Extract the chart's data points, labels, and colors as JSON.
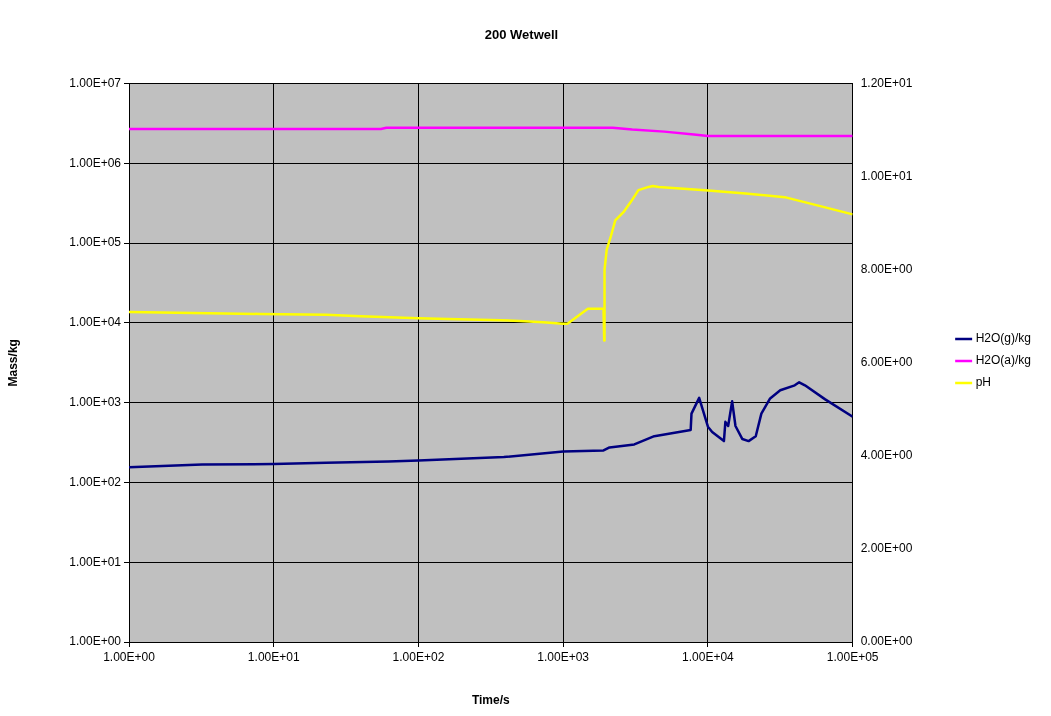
{
  "chart_data": {
    "type": "line",
    "title": "200 Wetwell",
    "xlabel": "Time/s",
    "ylabel": "Mass/kg",
    "log": "xy",
    "grid": true,
    "legend": "right",
    "marker": "none",
    "line_style": "solid",
    "xlim": [
      1,
      100000
    ],
    "xticks": [
      {
        "value": 1,
        "label": "1.00E+00"
      },
      {
        "value": 10,
        "label": "1.00E+01"
      },
      {
        "value": 100,
        "label": "1.00E+02"
      },
      {
        "value": 1000,
        "label": "1.00E+03"
      },
      {
        "value": 10000,
        "label": "1.00E+04"
      },
      {
        "value": 100000,
        "label": "1.00E+05"
      }
    ],
    "ylim": [
      1,
      10000000
    ],
    "yticks": [
      {
        "value": 1,
        "label": "1.00E+00"
      },
      {
        "value": 10,
        "label": "1.00E+01"
      },
      {
        "value": 100,
        "label": "1.00E+02"
      },
      {
        "value": 1000,
        "label": "1.00E+03"
      },
      {
        "value": 10000,
        "label": "1.00E+04"
      },
      {
        "value": 100000,
        "label": "1.00E+05"
      },
      {
        "value": 1000000,
        "label": "1.00E+06"
      },
      {
        "value": 10000000,
        "label": "1.00E+07"
      }
    ],
    "y2lim": [
      0,
      12
    ],
    "y2ticks": [
      {
        "value": 0,
        "label": "0.00E+00"
      },
      {
        "value": 2,
        "label": "2.00E+00"
      },
      {
        "value": 4,
        "label": "4.00E+00"
      },
      {
        "value": 6,
        "label": "6.00E+00"
      },
      {
        "value": 8,
        "label": "8.00E+00"
      },
      {
        "value": 10,
        "label": "1.00E+01"
      },
      {
        "value": 12,
        "label": "1.20E+01"
      }
    ],
    "series": [
      {
        "name": "H2O(g)/kg",
        "color": "#000080",
        "x": [
          1,
          3.2,
          10,
          23,
          62,
          100,
          389,
          1000,
          1900,
          2090,
          3100,
          4260,
          7600,
          7700,
          8700,
          10000,
          10700,
          12900,
          13200,
          13800,
          14700,
          15500,
          17300,
          19100,
          21400,
          23400,
          26900,
          31600,
          39800,
          42700,
          46800,
          64600,
          100000
        ],
        "values": [
          155,
          168,
          170,
          177,
          183,
          189,
          208,
          245,
          252,
          275,
          300,
          380,
          455,
          730,
          1150,
          500,
          430,
          330,
          575,
          510,
          1040,
          510,
          350,
          330,
          380,
          730,
          1130,
          1430,
          1650,
          1800,
          1650,
          1100,
          665
        ]
      },
      {
        "name": "H2O(a)/kg",
        "color": "#ff00ff",
        "x": [
          1,
          55,
          60,
          2200,
          3000,
          5000,
          8000,
          10000,
          100000
        ],
        "values": [
          2700000,
          2700000,
          2800000,
          2800000,
          2650000,
          2500000,
          2300000,
          2200000,
          2200000
        ]
      },
      {
        "name": "pH",
        "color": "#ffff00",
        "axis": "y2",
        "x": [
          1,
          8,
          23,
          40,
          63,
          100,
          160,
          316,
          500,
          724,
          1000,
          1070,
          1480,
          1900,
          1920,
          1930,
          2000,
          2140,
          2290,
          2630,
          2950,
          3310,
          3890,
          4170,
          4570,
          9550,
          18200,
          33900,
          64600,
          100000
        ],
        "values": [
          7.09,
          7.05,
          7.03,
          7.0,
          6.98,
          6.96,
          6.94,
          6.92,
          6.9,
          6.87,
          6.84,
          6.84,
          7.16,
          7.16,
          6.48,
          8.0,
          8.44,
          8.73,
          9.06,
          9.25,
          9.47,
          9.71,
          9.78,
          9.8,
          9.78,
          9.71,
          9.64,
          9.56,
          9.34,
          9.19
        ]
      }
    ]
  }
}
